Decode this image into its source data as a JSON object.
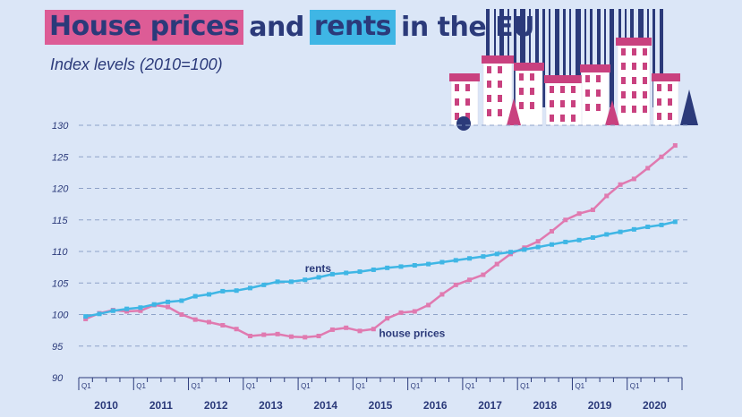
{
  "title": {
    "part1": "House prices",
    "part2": "and",
    "part3": "rents",
    "part4": "in the EU"
  },
  "subtitle": "Index levels (2010=100)",
  "colors": {
    "background": "#dbe6f7",
    "title_text": "#2b3a7a",
    "house_prices": "#e07ab0",
    "rents": "#3fb6e5",
    "highlight_pink": "#dd5c96",
    "highlight_blue": "#3fb6e5"
  },
  "illustration": "houses-with-barcode-icon",
  "chart_data": {
    "type": "line",
    "ylim": [
      90,
      130
    ],
    "yticks": [
      90,
      95,
      100,
      105,
      110,
      115,
      120,
      125,
      130
    ],
    "grid": "horizontal dashed",
    "quarter_label": "Q1",
    "years": [
      "2010",
      "2011",
      "2012",
      "2013",
      "2014",
      "2015",
      "2016",
      "2017",
      "2018",
      "2019",
      "2020"
    ],
    "series": [
      {
        "name": "house prices",
        "values": [
          99.3,
          100.2,
          100.7,
          100.5,
          100.6,
          101.5,
          101.2,
          100.0,
          99.2,
          98.8,
          98.3,
          97.7,
          96.6,
          96.8,
          96.9,
          96.5,
          96.4,
          96.6,
          97.6,
          97.9,
          97.4,
          97.7,
          99.4,
          100.3,
          100.5,
          101.5,
          103.2,
          104.7,
          105.5,
          106.3,
          108.0,
          109.6,
          110.6,
          111.6,
          113.2,
          115.0,
          116.0,
          116.6,
          118.8,
          120.6,
          121.5,
          123.2,
          125.0,
          126.8
        ]
      },
      {
        "name": "rents",
        "values": [
          99.7,
          100.1,
          100.6,
          100.9,
          101.1,
          101.6,
          102.0,
          102.2,
          102.9,
          103.2,
          103.7,
          103.8,
          104.2,
          104.7,
          105.2,
          105.2,
          105.5,
          105.9,
          106.4,
          106.6,
          106.8,
          107.1,
          107.4,
          107.6,
          107.8,
          108.0,
          108.3,
          108.6,
          108.9,
          109.2,
          109.6,
          109.9,
          110.3,
          110.7,
          111.1,
          111.5,
          111.8,
          112.2,
          112.7,
          113.1,
          113.5,
          113.9,
          114.2,
          114.7
        ]
      }
    ],
    "annotations": {
      "rents": "rents",
      "house_prices": "house prices"
    }
  }
}
